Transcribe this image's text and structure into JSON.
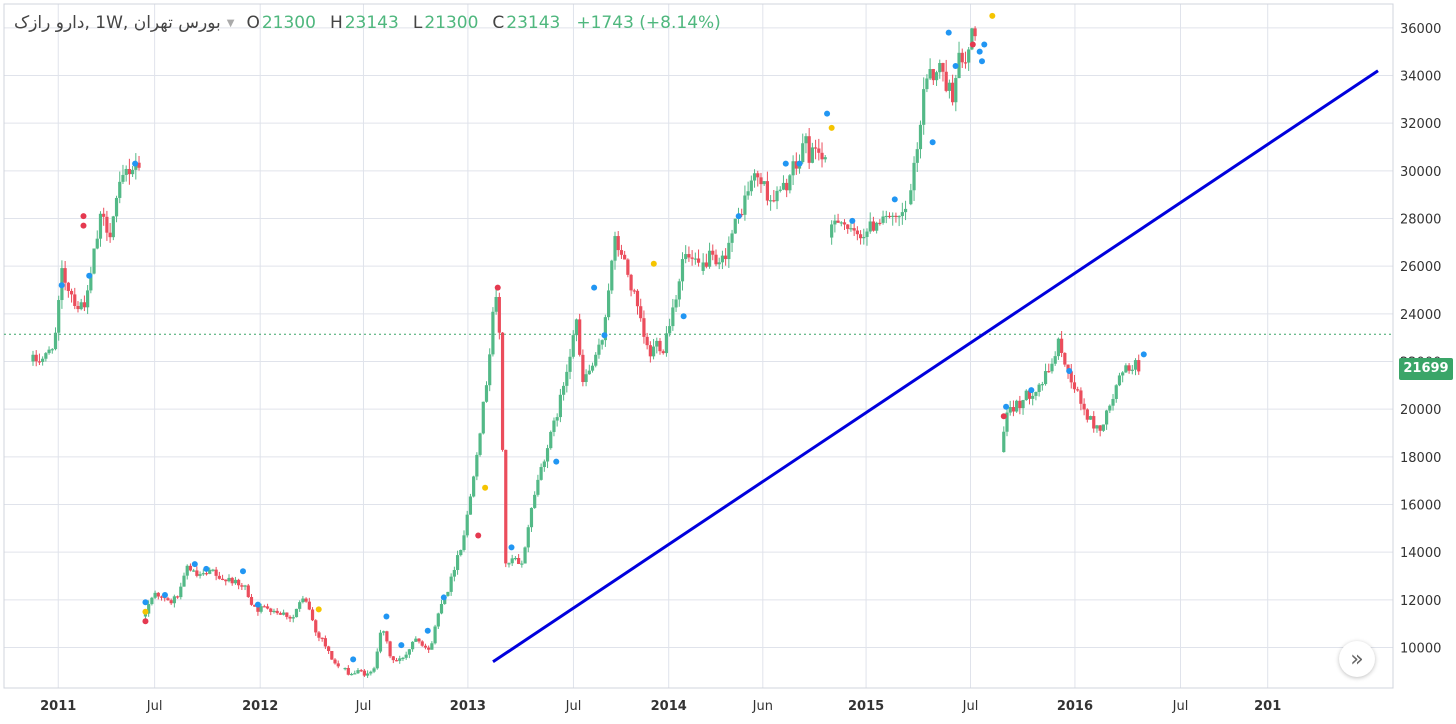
{
  "header": {
    "symbol": "بورس تهران ,1W ,دارو رازک",
    "open_label": "O",
    "open_value": "21300",
    "high_label": "H",
    "high_value": "23143",
    "low_label": "L",
    "low_value": "21300",
    "close_label": "C",
    "close_value": "23143",
    "change": "+1743 (+8.14%)"
  },
  "price_tag": "21699",
  "scroll_button_icon": "»",
  "chart_data": {
    "type": "candlestick",
    "x_axis_labels": [
      "2011",
      "Jul",
      "2012",
      "Jul",
      "2013",
      "Jul",
      "2014",
      "Jun",
      "2015",
      "Jul",
      "2016",
      "Jul",
      "201"
    ],
    "y_ticks": [
      10000,
      12000,
      14000,
      16000,
      18000,
      20000,
      22000,
      24000,
      26000,
      28000,
      30000,
      32000,
      34000,
      36000
    ],
    "ylim": [
      8300,
      37000
    ],
    "current_price_line": 23143,
    "trendline": {
      "x_start": "2013 Jan",
      "y_start": 9400,
      "x_end": "2016 Oct",
      "y_end": 34200,
      "color": "#0000dd"
    },
    "colors": {
      "up": "#53b987",
      "down": "#eb4d5c",
      "grid": "#e0e3eb",
      "axis_text": "#333333"
    },
    "segments": [
      {
        "start": 0,
        "end": 9.5,
        "anchors": [
          [
            0,
            22000
          ],
          [
            1.5,
            22200
          ],
          [
            2.3,
            23200
          ],
          [
            2.8,
            25700
          ],
          [
            4.2,
            24300
          ],
          [
            5.0,
            24600
          ],
          [
            5.6,
            26500
          ],
          [
            6.2,
            28000
          ],
          [
            7.0,
            27500
          ],
          [
            7.7,
            29000
          ],
          [
            8.4,
            30000
          ],
          [
            8.9,
            30100
          ],
          [
            9.4,
            30600
          ],
          [
            9.5,
            30000
          ]
        ]
      },
      {
        "start": 9.8,
        "end": 26.8,
        "anchors": [
          [
            9.8,
            11300
          ],
          [
            10.4,
            11800
          ],
          [
            10.9,
            12400
          ],
          [
            11.6,
            12000
          ],
          [
            12.3,
            11900
          ],
          [
            13.1,
            12300
          ],
          [
            13.8,
            13500
          ],
          [
            14.4,
            13000
          ],
          [
            15.2,
            13000
          ],
          [
            16.0,
            13200
          ],
          [
            16.6,
            12700
          ],
          [
            17.2,
            13000
          ],
          [
            18.1,
            12600
          ],
          [
            18.8,
            12500
          ],
          [
            19.3,
            11900
          ],
          [
            19.9,
            11600
          ],
          [
            20.7,
            11700
          ],
          [
            21.6,
            11500
          ],
          [
            22.3,
            11400
          ],
          [
            22.9,
            11200
          ],
          [
            23.4,
            11800
          ],
          [
            23.9,
            12000
          ],
          [
            24.4,
            11600
          ],
          [
            24.6,
            11200
          ],
          [
            25.0,
            10500
          ],
          [
            25.4,
            10500
          ],
          [
            25.9,
            9900
          ],
          [
            26.5,
            9400
          ],
          [
            26.8,
            9200
          ]
        ]
      },
      {
        "start": 27.2,
        "end": 58.0,
        "anchors": [
          [
            27.2,
            9100
          ],
          [
            28.0,
            8900
          ],
          [
            28.8,
            9000
          ],
          [
            29.6,
            8800
          ],
          [
            30.0,
            9200
          ],
          [
            30.6,
            10800
          ],
          [
            31.0,
            10400
          ],
          [
            31.5,
            9500
          ],
          [
            32.1,
            9400
          ],
          [
            32.9,
            9800
          ],
          [
            33.6,
            10500
          ],
          [
            34.2,
            10200
          ],
          [
            34.8,
            9800
          ],
          [
            35.3,
            10800
          ],
          [
            35.9,
            12000
          ],
          [
            36.6,
            12600
          ],
          [
            37.2,
            13800
          ],
          [
            37.7,
            14400
          ],
          [
            38.3,
            16000
          ],
          [
            38.8,
            17800
          ],
          [
            39.5,
            20000
          ],
          [
            40.0,
            22000
          ],
          [
            40.5,
            25000
          ],
          [
            40.9,
            23500
          ],
          [
            41.5,
            13200
          ],
          [
            42.2,
            13800
          ],
          [
            42.8,
            13200
          ],
          [
            43.4,
            15000
          ],
          [
            44.0,
            16500
          ],
          [
            44.7,
            17800
          ],
          [
            45.5,
            19000
          ],
          [
            46.3,
            20500
          ],
          [
            47.1,
            22500
          ],
          [
            47.6,
            24000
          ],
          [
            48.1,
            21000
          ],
          [
            48.6,
            21500
          ],
          [
            49.3,
            22000
          ],
          [
            49.9,
            23000
          ],
          [
            50.4,
            25000
          ],
          [
            51.0,
            27000
          ],
          [
            51.6,
            26500
          ],
          [
            52.2,
            25500
          ],
          [
            52.8,
            24500
          ],
          [
            53.4,
            23200
          ],
          [
            54.0,
            22200
          ],
          [
            54.6,
            22800
          ],
          [
            55.2,
            22600
          ],
          [
            55.8,
            23800
          ],
          [
            56.4,
            25000
          ],
          [
            57.0,
            26500
          ],
          [
            57.6,
            26200
          ],
          [
            58.0,
            26000
          ]
        ]
      },
      {
        "start": 58.0,
        "end": 76.2,
        "anchors": [
          [
            58.4,
            25800
          ],
          [
            59.2,
            26400
          ],
          [
            60.0,
            25800
          ],
          [
            60.8,
            26800
          ],
          [
            61.4,
            27600
          ],
          [
            62.1,
            28500
          ],
          [
            62.8,
            29500
          ],
          [
            63.4,
            29800
          ],
          [
            64.0,
            29300
          ],
          [
            64.6,
            28800
          ],
          [
            65.2,
            29000
          ],
          [
            65.8,
            29300
          ],
          [
            66.4,
            30000
          ],
          [
            67.0,
            30200
          ],
          [
            67.5,
            31500
          ],
          [
            68.0,
            30500
          ],
          [
            68.6,
            31200
          ],
          [
            69.0,
            30500
          ],
          [
            69.2,
            30200
          ]
        ]
      },
      {
        "start": 69.6,
        "end": 76.2,
        "anchors": [
          [
            69.6,
            27200
          ],
          [
            70.3,
            28200
          ],
          [
            71.0,
            27800
          ],
          [
            71.7,
            27200
          ],
          [
            72.4,
            27400
          ],
          [
            73.1,
            27500
          ],
          [
            73.8,
            27900
          ],
          [
            74.5,
            28300
          ],
          [
            75.2,
            27800
          ],
          [
            75.8,
            27900
          ],
          [
            76.2,
            28300
          ]
        ]
      },
      {
        "start": 76.2,
        "end": 85.6,
        "anchors": [
          [
            76.5,
            28600
          ],
          [
            77.0,
            29800
          ],
          [
            77.4,
            31000
          ],
          [
            77.9,
            33500
          ],
          [
            78.4,
            34500
          ],
          [
            78.9,
            33800
          ],
          [
            79.4,
            34500
          ],
          [
            79.9,
            33600
          ],
          [
            80.4,
            33200
          ],
          [
            80.9,
            34800
          ],
          [
            81.4,
            34200
          ],
          [
            81.9,
            35200
          ],
          [
            82.2,
            36000
          ]
        ]
      },
      {
        "start": 84.5,
        "end": 100.0,
        "anchors": [
          [
            84.6,
            18200
          ],
          [
            85.1,
            19600
          ],
          [
            85.8,
            20100
          ],
          [
            86.6,
            20400
          ],
          [
            87.4,
            20800
          ],
          [
            88.2,
            21100
          ],
          [
            88.8,
            21600
          ],
          [
            89.4,
            22400
          ],
          [
            89.8,
            22900
          ],
          [
            90.2,
            21800
          ],
          [
            90.8,
            21300
          ],
          [
            91.4,
            20500
          ],
          [
            92.0,
            19800
          ],
          [
            92.6,
            19400
          ],
          [
            93.2,
            19100
          ],
          [
            93.8,
            19700
          ],
          [
            94.4,
            20500
          ],
          [
            95.0,
            21300
          ],
          [
            95.6,
            21700
          ],
          [
            96.2,
            21900
          ],
          [
            96.6,
            21700
          ]
        ]
      }
    ],
    "markers": [
      {
        "t": 2.5,
        "p": 25200,
        "c": "blue"
      },
      {
        "t": 4.4,
        "p": 28100,
        "c": "red"
      },
      {
        "t": 4.4,
        "p": 27700,
        "c": "red"
      },
      {
        "t": 4.9,
        "p": 25600,
        "c": "blue"
      },
      {
        "t": 8.9,
        "p": 30300,
        "c": "blue"
      },
      {
        "t": 9.8,
        "p": 11100,
        "c": "red"
      },
      {
        "t": 9.8,
        "p": 11500,
        "c": "yellow"
      },
      {
        "t": 9.8,
        "p": 11900,
        "c": "blue"
      },
      {
        "t": 11.5,
        "p": 12200,
        "c": "blue"
      },
      {
        "t": 14.1,
        "p": 13500,
        "c": "blue"
      },
      {
        "t": 15.1,
        "p": 13300,
        "c": "blue"
      },
      {
        "t": 18.3,
        "p": 13200,
        "c": "blue"
      },
      {
        "t": 19.6,
        "p": 11800,
        "c": "blue"
      },
      {
        "t": 24.9,
        "p": 11600,
        "c": "yellow"
      },
      {
        "t": 27.9,
        "p": 9500,
        "c": "blue"
      },
      {
        "t": 30.8,
        "p": 11300,
        "c": "blue"
      },
      {
        "t": 32.1,
        "p": 10100,
        "c": "blue"
      },
      {
        "t": 34.4,
        "p": 10700,
        "c": "blue"
      },
      {
        "t": 35.8,
        "p": 12100,
        "c": "blue"
      },
      {
        "t": 38.8,
        "p": 14700,
        "c": "red"
      },
      {
        "t": 39.4,
        "p": 16700,
        "c": "yellow"
      },
      {
        "t": 40.5,
        "p": 25100,
        "c": "red"
      },
      {
        "t": 41.7,
        "p": 14200,
        "c": "blue"
      },
      {
        "t": 45.6,
        "p": 17800,
        "c": "blue"
      },
      {
        "t": 48.9,
        "p": 25100,
        "c": "blue"
      },
      {
        "t": 49.8,
        "p": 23100,
        "c": "blue"
      },
      {
        "t": 54.1,
        "p": 26100,
        "c": "yellow"
      },
      {
        "t": 56.7,
        "p": 23900,
        "c": "blue"
      },
      {
        "t": 61.5,
        "p": 28100,
        "c": "blue"
      },
      {
        "t": 65.6,
        "p": 30300,
        "c": "blue"
      },
      {
        "t": 66.8,
        "p": 30300,
        "c": "blue"
      },
      {
        "t": 69.2,
        "p": 32400,
        "c": "blue"
      },
      {
        "t": 69.6,
        "p": 31800,
        "c": "yellow"
      },
      {
        "t": 71.4,
        "p": 27900,
        "c": "blue"
      },
      {
        "t": 75.1,
        "p": 28800,
        "c": "blue"
      },
      {
        "t": 78.4,
        "p": 31200,
        "c": "blue"
      },
      {
        "t": 79.8,
        "p": 35800,
        "c": "blue"
      },
      {
        "t": 80.4,
        "p": 34400,
        "c": "blue"
      },
      {
        "t": 81.9,
        "p": 35300,
        "c": "red"
      },
      {
        "t": 82.5,
        "p": 35000,
        "c": "blue"
      },
      {
        "t": 82.9,
        "p": 35300,
        "c": "blue"
      },
      {
        "t": 82.7,
        "p": 34600,
        "c": "blue"
      },
      {
        "t": 83.6,
        "p": 36500,
        "c": "yellow"
      },
      {
        "t": 84.6,
        "p": 19700,
        "c": "red"
      },
      {
        "t": 84.8,
        "p": 20100,
        "c": "blue"
      },
      {
        "t": 87.0,
        "p": 20800,
        "c": "blue"
      },
      {
        "t": 90.3,
        "p": 21600,
        "c": "blue"
      },
      {
        "t": 96.8,
        "p": 22300,
        "c": "blue"
      }
    ]
  }
}
